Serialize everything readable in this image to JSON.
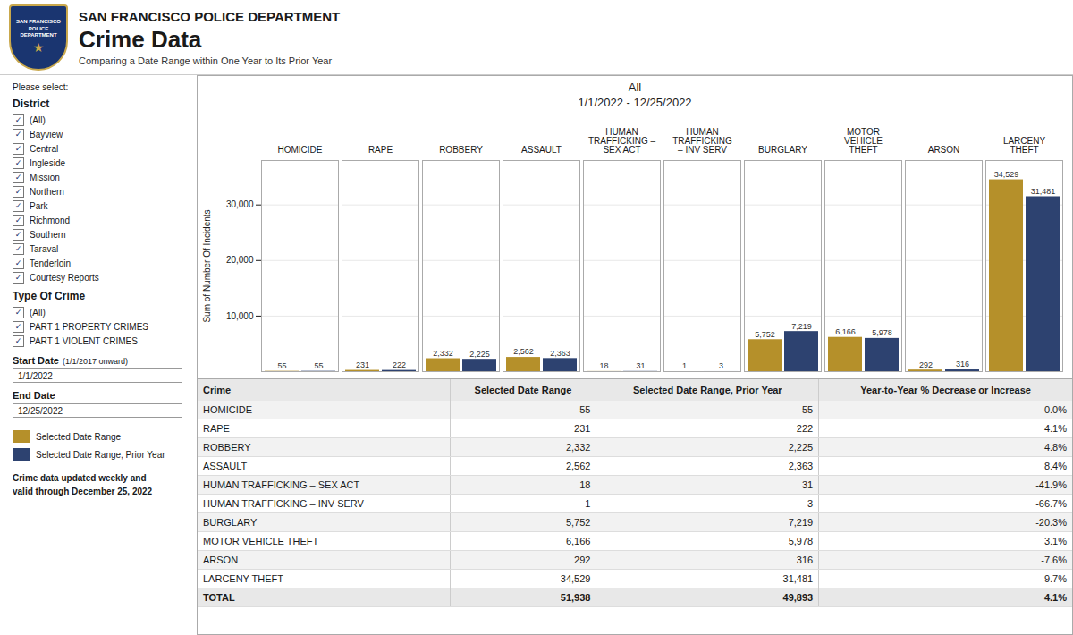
{
  "chart_data": {
    "type": "bar",
    "title": "All",
    "subtitle": "1/1/2022 - 12/25/2022",
    "ylabel": "Sum of Number Of Incidents",
    "categories": [
      "HOMICIDE",
      "RAPE",
      "ROBBERY",
      "ASSAULT",
      "HUMAN\nTRAFFICKING –\nSEX ACT",
      "HUMAN\nTRAFFICKING\n– INV SERV",
      "BURGLARY",
      "MOTOR\nVEHICLE\nTHEFT",
      "ARSON",
      "LARCENY\nTHEFT"
    ],
    "series": [
      {
        "name": "Selected Date Range",
        "color": "#b5902a",
        "values": [
          55,
          231,
          2332,
          2562,
          18,
          1,
          5752,
          6166,
          292,
          34529
        ],
        "value_labels": [
          "55",
          "231",
          "2,332",
          "2,562",
          "18",
          "1",
          "5,752",
          "6,166",
          "292",
          "34,529"
        ]
      },
      {
        "name": "Selected Date Range, Prior Year",
        "color": "#2d4270",
        "values": [
          55,
          222,
          2225,
          2363,
          31,
          3,
          7219,
          5978,
          316,
          31481
        ],
        "value_labels": [
          "55",
          "222",
          "2,225",
          "2,363",
          "31",
          "3",
          "7,219",
          "5,978",
          "316",
          "31,481"
        ]
      }
    ],
    "ylim": [
      0,
      38000
    ],
    "yticks": [
      {
        "value": 10000,
        "label": "10,000"
      },
      {
        "value": 20000,
        "label": "20,000"
      },
      {
        "value": 30000,
        "label": "30,000"
      }
    ],
    "grid": true,
    "data_labels": true,
    "legend": "left",
    "header": {
      "badge": [
        "SAN FRANCISCO",
        "POLICE",
        "DEPARTMENT",
        "★"
      ],
      "title": "SAN FRANCISCO POLICE DEPARTMENT",
      "subtitle": "Crime Data",
      "note": "Comparing a Date Range within One Year to Its Prior Year"
    },
    "filters": {
      "prompt": "Please select:",
      "check": "✓",
      "groups": [
        {
          "label": "District",
          "options": [
            "(All)",
            "Bayview",
            "Central",
            "Ingleside",
            "Mission",
            "Northern",
            "Park",
            "Richmond",
            "Southern",
            "Taraval",
            "Tenderloin",
            "Courtesy Reports"
          ]
        },
        {
          "label": "Type Of Crime",
          "options": [
            "(All)",
            "PART 1 PROPERTY CRIMES",
            "PART 1 VIOLENT CRIMES"
          ]
        }
      ],
      "start_label": "Start Date",
      "start_note": "(1/1/2017 onward)",
      "start_date": "1/1/2022",
      "end_label": "End Date",
      "end_date": "12/25/2022",
      "note": "Crime data updated weekly and\nvalid through December 25, 2022"
    },
    "table": {
      "columns": [
        "Crime",
        "Selected Date Range",
        "Selected Date Range, Prior Year",
        "Year-to-Year % Decrease or Increase"
      ],
      "rows": [
        [
          "HOMICIDE",
          55,
          55,
          {
            "value": 0.0,
            "label": "0.0%"
          }
        ],
        [
          "RAPE",
          231,
          222,
          {
            "value": 4.1,
            "label": "4.1%"
          }
        ],
        [
          "ROBBERY",
          {
            "value": 2332,
            "label": "2,332"
          },
          {
            "value": 2225,
            "label": "2,225"
          },
          {
            "value": 4.8,
            "label": "4.8%"
          }
        ],
        [
          "ASSAULT",
          {
            "value": 2562,
            "label": "2,562"
          },
          {
            "value": 2363,
            "label": "2,363"
          },
          {
            "value": 8.4,
            "label": "8.4%"
          }
        ],
        [
          "HUMAN TRAFFICKING – SEX ACT",
          18,
          31,
          {
            "value": -41.9,
            "label": "-41.9%"
          }
        ],
        [
          "HUMAN TRAFFICKING – INV SERV",
          1,
          3,
          {
            "value": -66.7,
            "label": "-66.7%"
          }
        ],
        [
          "BURGLARY",
          {
            "value": 5752,
            "label": "5,752"
          },
          {
            "value": 7219,
            "label": "7,219"
          },
          {
            "value": -20.3,
            "label": "-20.3%"
          }
        ],
        [
          "MOTOR VEHICLE THEFT",
          {
            "value": 6166,
            "label": "6,166"
          },
          {
            "value": 5978,
            "label": "5,978"
          },
          {
            "value": 3.1,
            "label": "3.1%"
          }
        ],
        [
          "ARSON",
          292,
          316,
          {
            "value": -7.6,
            "label": "-7.6%"
          }
        ],
        [
          "LARCENY THEFT",
          {
            "value": 34529,
            "label": "34,529"
          },
          {
            "value": 31481,
            "label": "31,481"
          },
          {
            "value": 9.7,
            "label": "9.7%"
          }
        ],
        [
          "TOTAL",
          {
            "value": 51938,
            "label": "51,938"
          },
          {
            "value": 49893,
            "label": "49,893"
          },
          {
            "value": 4.1,
            "label": "4.1%"
          }
        ]
      ]
    }
  }
}
